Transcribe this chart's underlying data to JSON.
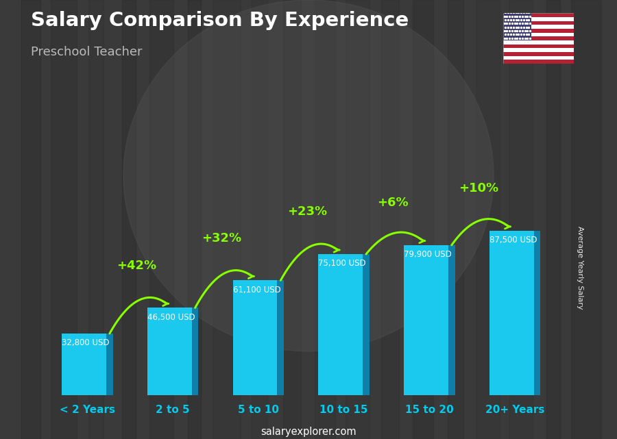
{
  "title": "Salary Comparison By Experience",
  "subtitle": "Preschool Teacher",
  "ylabel": "Average Yearly Salary",
  "footer": "salaryexplorer.com",
  "categories": [
    "< 2 Years",
    "2 to 5",
    "5 to 10",
    "10 to 15",
    "15 to 20",
    "20+ Years"
  ],
  "values": [
    32800,
    46500,
    61100,
    75100,
    79900,
    87500
  ],
  "labels": [
    "32,800 USD",
    "46,500 USD",
    "61,100 USD",
    "75,100 USD",
    "79,900 USD",
    "87,500 USD"
  ],
  "pct_changes": [
    "+42%",
    "+32%",
    "+23%",
    "+6%",
    "+10%"
  ],
  "bar_face_color": "#1BC8EE",
  "bar_side_color": "#0E7FA8",
  "bar_top_color": "#6FE4FF",
  "bg_color": "#4A4A4A",
  "title_color": "#FFFFFF",
  "subtitle_color": "#BBBBBB",
  "label_color": "#FFFFFF",
  "pct_color": "#88FF00",
  "cat_color": "#00CCEE",
  "figsize": [
    9.0,
    6.41
  ],
  "dpi": 100
}
